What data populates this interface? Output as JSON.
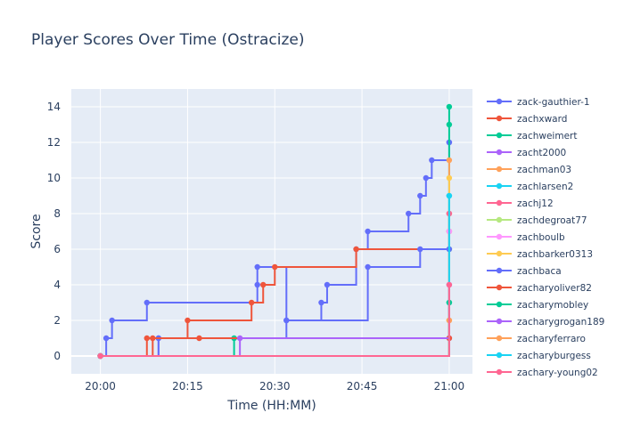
{
  "chart_data": {
    "type": "line",
    "line_shape": "step",
    "title": "Player Scores Over Time (Ostracize)",
    "xlabel": "Time (HH:MM)",
    "ylabel": "Score",
    "xlim": [
      "19:55",
      "21:04"
    ],
    "ylim": [
      -1,
      15
    ],
    "x_ticks": [
      "20:00",
      "20:15",
      "20:30",
      "20:45",
      "21:00"
    ],
    "y_ticks": [
      0,
      2,
      4,
      6,
      8,
      10,
      12,
      14
    ],
    "grid": true,
    "legend_position": "right",
    "series": [
      {
        "name": "zack-gauthier-1",
        "color": "#636efa",
        "x": [
          "20:00",
          "20:01",
          "20:02",
          "20:08",
          "20:27",
          "20:27",
          "20:32",
          "20:38",
          "20:39",
          "20:44",
          "20:46",
          "20:53",
          "20:55",
          "20:56",
          "20:57",
          "21:00",
          "21:00"
        ],
        "y": [
          0,
          1,
          2,
          3,
          4,
          5,
          2,
          3,
          4,
          6,
          7,
          8,
          9,
          10,
          11,
          12,
          12
        ]
      },
      {
        "name": "zachxward",
        "color": "#ef553b",
        "x": [
          "20:00",
          "20:08",
          "20:15",
          "20:26",
          "20:28",
          "20:30",
          "20:44",
          "21:00",
          "21:00"
        ],
        "y": [
          0,
          1,
          2,
          3,
          4,
          5,
          6,
          7,
          8
        ]
      },
      {
        "name": "zachweimert",
        "color": "#00cc96",
        "x": [
          "20:00",
          "20:23",
          "21:00",
          "21:00",
          "21:00",
          "21:00"
        ],
        "y": [
          0,
          1,
          3,
          6,
          13,
          14
        ]
      },
      {
        "name": "zacht2000",
        "color": "#ab63fa",
        "x": [
          "20:00",
          "20:10",
          "21:00"
        ],
        "y": [
          0,
          1,
          1
        ]
      },
      {
        "name": "zachman03",
        "color": "#ffa15a",
        "x": [
          "20:00",
          "21:00",
          "21:00"
        ],
        "y": [
          0,
          2,
          11
        ]
      },
      {
        "name": "zachlarsen2",
        "color": "#19d3f3",
        "x": [
          "20:00",
          "21:00"
        ],
        "y": [
          0,
          9
        ]
      },
      {
        "name": "zachj12",
        "color": "#ff6692",
        "x": [
          "20:00",
          "21:00"
        ],
        "y": [
          0,
          8
        ]
      },
      {
        "name": "zachdegroat77",
        "color": "#b6e880",
        "x": [
          "20:00",
          "21:00"
        ],
        "y": [
          0,
          6
        ]
      },
      {
        "name": "zachboulb",
        "color": "#ff97ff",
        "x": [
          "20:00",
          "21:00"
        ],
        "y": [
          0,
          7
        ]
      },
      {
        "name": "zachbarker0313",
        "color": "#fecb52",
        "x": [
          "20:00",
          "21:00"
        ],
        "y": [
          0,
          10
        ]
      },
      {
        "name": "zachbaca",
        "color": "#636efa",
        "x": [
          "20:00",
          "20:10",
          "20:32",
          "20:46",
          "20:55",
          "21:00"
        ],
        "y": [
          0,
          1,
          2,
          5,
          6,
          6
        ]
      },
      {
        "name": "zacharyoliver82",
        "color": "#ef553b",
        "x": [
          "20:00",
          "20:09",
          "20:17",
          "21:00"
        ],
        "y": [
          0,
          1,
          1,
          1
        ]
      },
      {
        "name": "zacharymobley",
        "color": "#00cc96",
        "x": [
          "20:00",
          "21:00"
        ],
        "y": [
          0,
          3
        ]
      },
      {
        "name": "zacharygrogan189",
        "color": "#ab63fa",
        "x": [
          "20:00",
          "20:24",
          "21:00"
        ],
        "y": [
          0,
          1,
          4
        ]
      },
      {
        "name": "zacharyferraro",
        "color": "#ffa15a",
        "x": [
          "20:00",
          "21:00"
        ],
        "y": [
          0,
          2
        ]
      },
      {
        "name": "zacharyburgess",
        "color": "#19d3f3",
        "x": [
          "20:00",
          "21:00"
        ],
        "y": [
          0,
          9
        ]
      },
      {
        "name": "zachary-young02",
        "color": "#ff6692",
        "x": [
          "20:00",
          "21:00"
        ],
        "y": [
          0,
          4
        ]
      }
    ]
  }
}
